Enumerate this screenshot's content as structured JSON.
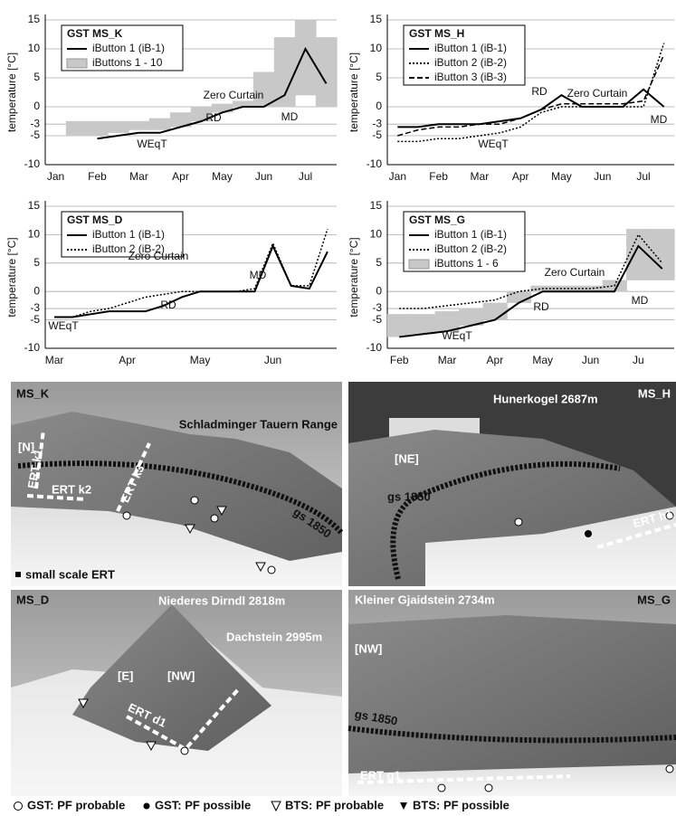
{
  "chart_data": [
    {
      "type": "line",
      "title": "GST MS_K",
      "ylabel": "temperature [°C]",
      "categories": [
        "Jan",
        null,
        "Feb",
        null,
        "Mar",
        null,
        "Apr",
        null,
        "May",
        null,
        "Jun",
        null,
        "Jul",
        null
      ],
      "series": [
        {
          "name": "iButton 1 (iB-1)",
          "color": "#000000",
          "dash": "solid",
          "values": [
            null,
            null,
            -5.5,
            -5,
            -4.5,
            -4.5,
            -3.5,
            -2.5,
            -1,
            0,
            0,
            2,
            10,
            4
          ]
        },
        {
          "name": "iButtons 1 - 10",
          "color": "#c8c8c8",
          "low": [
            null,
            -5,
            -5,
            -4.5,
            -4,
            -4,
            -3.5,
            -2.5,
            -1,
            0,
            0,
            0,
            2,
            0
          ],
          "high": [
            null,
            -2.5,
            -2.5,
            -2.5,
            -2.5,
            -2,
            -1,
            0,
            0.5,
            1,
            6,
            12,
            15,
            12
          ]
        }
      ],
      "ylim": [
        -10,
        15
      ],
      "yticks": [
        -10,
        -5,
        -3,
        0,
        5,
        10,
        15
      ],
      "grid": true,
      "annotations": [
        "Zero Curtain",
        "RD",
        "MD",
        "WEqT"
      ]
    },
    {
      "type": "line",
      "title": "GST MS_H",
      "ylabel": "temperature [°C]",
      "categories": [
        "Jan",
        null,
        "Feb",
        null,
        "Mar",
        null,
        "Apr",
        null,
        "May",
        null,
        "Jun",
        null,
        "Jul",
        null
      ],
      "series": [
        {
          "name": "iButton 1 (iB-1)",
          "color": "#000000",
          "dash": "solid",
          "values": [
            -3.5,
            -3.5,
            -3,
            -3,
            -3,
            -2.5,
            -2,
            -0.5,
            2,
            0,
            0,
            0,
            3,
            0
          ]
        },
        {
          "name": "iButton 2 (iB-2)",
          "color": "#000000",
          "dash": "dotted",
          "values": [
            -6,
            -6,
            -5.5,
            -5.5,
            -5,
            -4.5,
            -3.5,
            -1,
            0,
            0,
            0,
            0,
            0,
            11
          ]
        },
        {
          "name": "iButton 3 (iB-3)",
          "color": "#000000",
          "dash": "dashed",
          "values": [
            -5,
            -4,
            -3.5,
            -3.5,
            -3,
            -3,
            -2,
            -0.5,
            0.5,
            0.5,
            0.5,
            0.5,
            1,
            9
          ]
        }
      ],
      "ylim": [
        -10,
        15
      ],
      "yticks": [
        -10,
        -5,
        -3,
        0,
        5,
        10,
        15
      ],
      "grid": true,
      "annotations": [
        "RD",
        "Zero Curtain",
        "MD",
        "WEqT"
      ]
    },
    {
      "type": "line",
      "title": "GST MS_D",
      "ylabel": "temperature [°C]",
      "categories": [
        "Mar",
        null,
        null,
        null,
        "Apr",
        null,
        null,
        null,
        "May",
        null,
        null,
        null,
        "Jun",
        null,
        null,
        null
      ],
      "series": [
        {
          "name": "iButton 1 (iB-1)",
          "color": "#000000",
          "dash": "solid",
          "values": [
            -4.5,
            -4.5,
            -4,
            -3.5,
            -3.5,
            -3.5,
            -2.5,
            -1,
            0,
            0,
            0,
            0,
            8,
            1,
            0.5,
            7
          ]
        },
        {
          "name": "iButton 2 (iB-2)",
          "color": "#000000",
          "dash": "dotted",
          "values": [
            -4.5,
            -4.5,
            -3.5,
            -3,
            -2,
            -1,
            -0.5,
            0,
            0,
            0,
            0,
            0.5,
            8.5,
            1,
            1,
            11
          ]
        }
      ],
      "ylim": [
        -10,
        15
      ],
      "yticks": [
        -10,
        -5,
        -3,
        0,
        5,
        10,
        15
      ],
      "grid": true,
      "annotations": [
        "Zero Curtain",
        "MD",
        "RD",
        "WEqT"
      ]
    },
    {
      "type": "line",
      "title": "GST MS_G",
      "ylabel": "temperature [°C]",
      "categories": [
        "Feb",
        null,
        "Mar",
        null,
        "Apr",
        null,
        "May",
        null,
        "Jun",
        null,
        "Ju",
        null
      ],
      "series": [
        {
          "name": "iButton 1 (iB-1)",
          "color": "#000000",
          "dash": "solid",
          "values": [
            -8,
            -7.5,
            -7,
            -6,
            -5,
            -2,
            0,
            0,
            0,
            0,
            8,
            4
          ]
        },
        {
          "name": "iButton 2 (iB-2)",
          "color": "#000000",
          "dash": "dotted",
          "values": [
            -3,
            -3,
            -2.5,
            -2,
            -1.5,
            0,
            0.5,
            0.5,
            0.5,
            1,
            10,
            5
          ]
        },
        {
          "name": "iButtons 1 - 6",
          "color": "#c8c8c8",
          "low": [
            -8,
            -7.5,
            -7,
            -6,
            -5,
            -2,
            0,
            0,
            0,
            0,
            2,
            2
          ],
          "high": [
            -4,
            -4,
            -3.5,
            -3,
            -2,
            0,
            1,
            1,
            1,
            2,
            11,
            11
          ]
        }
      ],
      "ylim": [
        -10,
        15
      ],
      "yticks": [
        -10,
        -5,
        -3,
        0,
        5,
        10,
        15
      ],
      "grid": true,
      "annotations": [
        "Zero Curtain",
        "MD",
        "RD",
        "WEqT"
      ]
    }
  ],
  "photos": [
    {
      "title": "MS_K",
      "labels": [
        "Schladminger Tauern Range",
        "[N]",
        "ERT k1",
        "ERT k2",
        "ERT k3",
        "gs 1850",
        "small scale ERT"
      ]
    },
    {
      "title": "MS_H",
      "labels": [
        "Hunerkogel 2687m",
        "[NE]",
        "gs 1850",
        "ERT h1"
      ]
    },
    {
      "title": "MS_D",
      "labels": [
        "Niederes Dirndl 2818m",
        "Dachstein 2995m",
        "[E]",
        "[NW]",
        "ERT d1"
      ]
    },
    {
      "title": "MS_G",
      "labels": [
        "Kleiner Gjaidstein 2734m",
        "[NW]",
        "gs 1850",
        "ERT g1"
      ]
    }
  ],
  "legend": [
    "GST: PF probable",
    "GST: PF possible",
    "BTS: PF probable",
    "BTS: PF possible"
  ]
}
